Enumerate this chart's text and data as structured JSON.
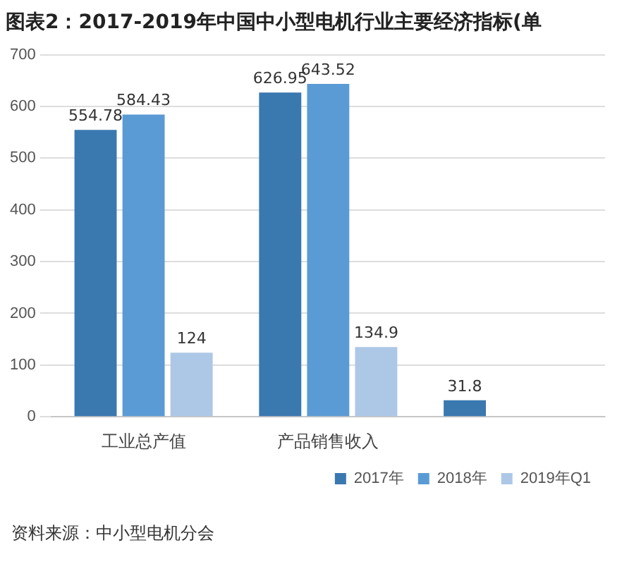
{
  "chart_data": {
    "type": "bar",
    "title": "图表2：2017-2019年中国中小型电机行业主要经济指标(单",
    "categories": [
      "工业总产值",
      "产品销售收入",
      null
    ],
    "series": [
      {
        "name": "2017年",
        "color": "#3a78b0",
        "values": [
          554.78,
          626.95,
          31.8
        ]
      },
      {
        "name": "2018年",
        "color": "#5b9bd5",
        "values": [
          584.43,
          643.52,
          null
        ]
      },
      {
        "name": "2019年Q1",
        "color": "#adc8e6",
        "values": [
          124,
          134.9,
          null
        ]
      }
    ],
    "ylim": [
      0,
      700
    ],
    "yticks": [
      0,
      100,
      200,
      300,
      400,
      500,
      600,
      700
    ],
    "grid": "y",
    "legend": "bottom",
    "data_labels": true,
    "annotations": [
      "资料来源：中小型电机分会"
    ]
  }
}
